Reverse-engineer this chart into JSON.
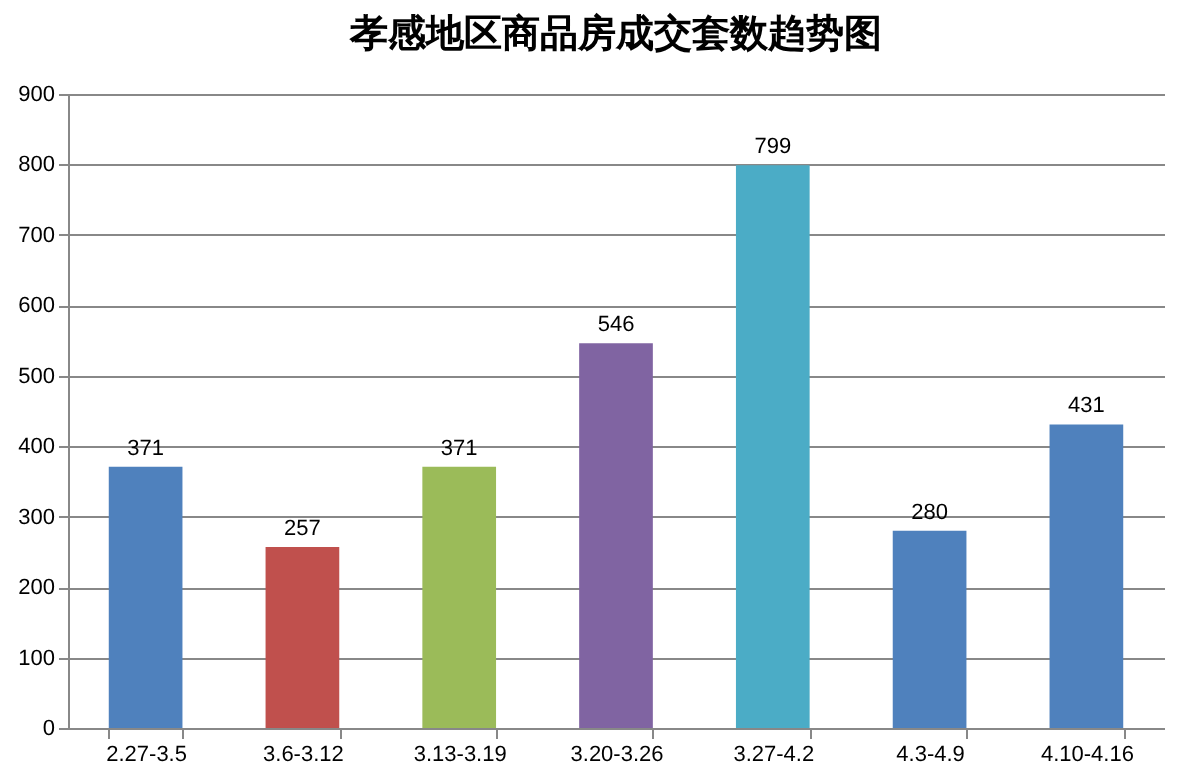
{
  "chart_data": {
    "type": "bar",
    "title": "孝感地区商品房成交套数趋势图",
    "categories": [
      "2.27-3.5",
      "3.6-3.12",
      "3.13-3.19",
      "3.20-3.26",
      "3.27-4.2",
      "4.3-4.9",
      "4.10-4.16"
    ],
    "values": [
      371,
      257,
      371,
      546,
      799,
      280,
      431
    ],
    "colors": [
      "#4f81bd",
      "#c0504d",
      "#9bbb59",
      "#8064a2",
      "#4bacc6",
      "#4f81bd",
      "#4f81bd"
    ],
    "ylim": [
      0,
      900
    ],
    "yticks": [
      0,
      100,
      200,
      300,
      400,
      500,
      600,
      700,
      800,
      900
    ],
    "grid": "y",
    "data_labels": true
  }
}
